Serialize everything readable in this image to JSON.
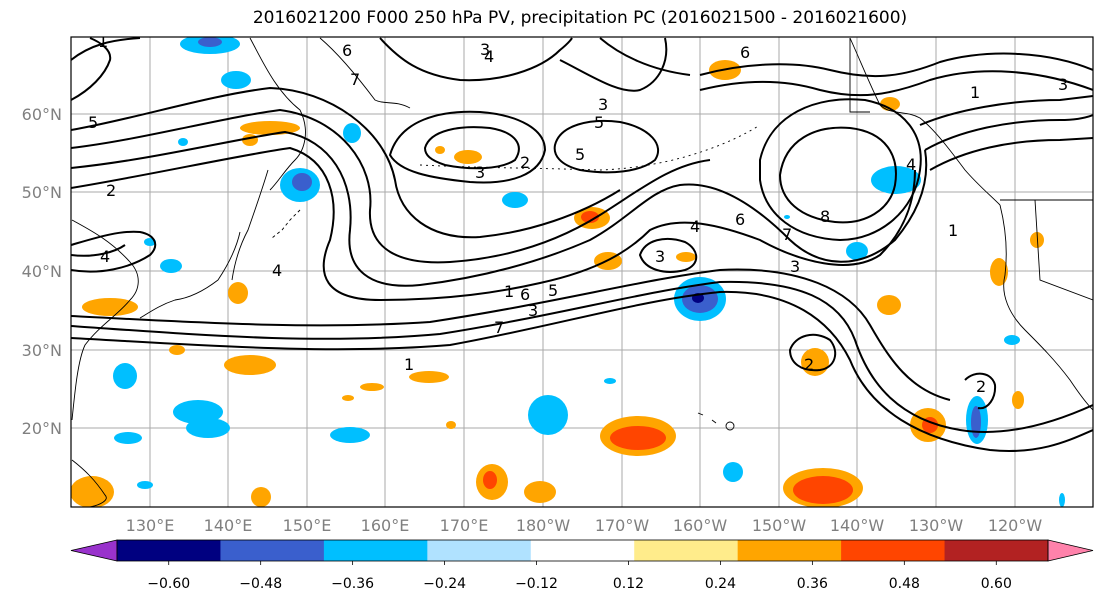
{
  "title": "2016021200 F000 250 hPa PV, precipitation PC (2016021500 - 2016021600)",
  "lat_labels": [
    "60°N",
    "50°N",
    "40°N",
    "30°N",
    "20°N"
  ],
  "lon_labels": [
    "130°E",
    "140°E",
    "150°E",
    "160°E",
    "170°E",
    "180°W",
    "170°W",
    "160°W",
    "150°W",
    "140°W",
    "130°W",
    "120°W"
  ],
  "colorbar": {
    "ticks": [
      "−0.60",
      "−0.48",
      "−0.36",
      "−0.24",
      "−0.12",
      "0.12",
      "0.24",
      "0.36",
      "0.48",
      "0.60"
    ],
    "colors": [
      "#9932CC",
      "#000080",
      "#3A5FCD",
      "#00BFFF",
      "#B0E2FF",
      "#FFFFFF",
      "#FFEC8B",
      "#FFA500",
      "#FF4500",
      "#B22222",
      "#FF82AB"
    ]
  },
  "contour_labels": [
    "1",
    "6",
    "7",
    "3",
    "4",
    "2",
    "5",
    "6",
    "7",
    "8",
    "4",
    "6",
    "7",
    "5",
    "3",
    "2",
    "1",
    "1",
    "4",
    "3",
    "3",
    "7",
    "1",
    "6",
    "5",
    "3",
    "2",
    "5",
    "3",
    "1",
    "3",
    "4",
    "4",
    "2",
    "1"
  ],
  "colors": {
    "positive": "#FFA500",
    "positive_strong": "#FF4500",
    "positive_weak": "#FFEC8B",
    "negative": "#00BFFF",
    "negative_strong": "#3A5FCD",
    "negative_weak": "#B0E2FF",
    "contour": "#000000",
    "grid": "#AAAAAA"
  }
}
